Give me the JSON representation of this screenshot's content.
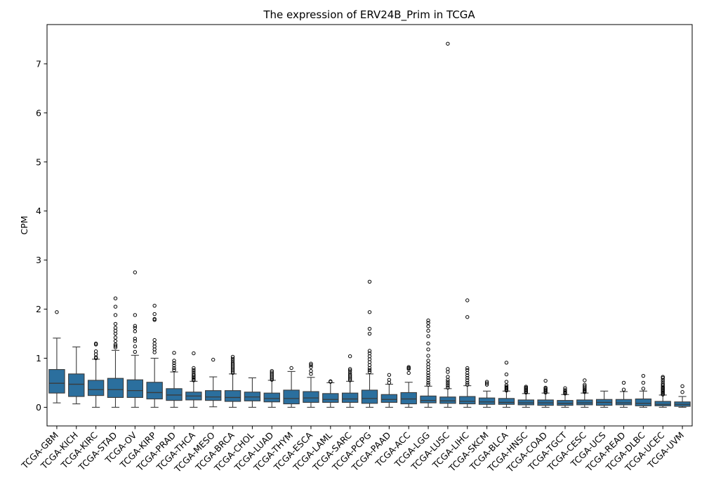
{
  "chart_data": {
    "type": "box",
    "title": "The expression of ERV24B_Prim in TCGA",
    "xlabel": "",
    "ylabel": "CPM",
    "ylim": [
      -0.38,
      7.8
    ],
    "yticks": [
      0,
      1,
      2,
      3,
      4,
      5,
      6,
      7
    ],
    "box_color": "#2b6f9e",
    "categories": [
      "TCGA-GBM",
      "TCGA-KICH",
      "TCGA-KIRC",
      "TCGA-STAD",
      "TCGA-OV",
      "TCGA-KIRP",
      "TCGA-PRAD",
      "TCGA-THCA",
      "TCGA-MESO",
      "TCGA-BRCA",
      "TCGA-CHOL",
      "TCGA-LUAD",
      "TCGA-THYM",
      "TCGA-ESCA",
      "TCGA-LAML",
      "TCGA-SARC",
      "TCGA-PCPG",
      "TCGA-PAAD",
      "TCGA-ACC",
      "TCGA-LGG",
      "TCGA-LUSC",
      "TCGA-LIHC",
      "TCGA-SKCM",
      "TCGA-BLCA",
      "TCGA-HNSC",
      "TCGA-COAD",
      "TCGA-TGCT",
      "TCGA-CESC",
      "TCGA-UCS",
      "TCGA-READ",
      "TCGA-DLBC",
      "TCGA-UCEC",
      "TCGA-UVM"
    ],
    "boxes": [
      {
        "whislo": 0.09,
        "q1": 0.29,
        "med": 0.49,
        "q3": 0.77,
        "whishi": 1.41,
        "fliers": [
          1.94
        ]
      },
      {
        "whislo": 0.07,
        "q1": 0.22,
        "med": 0.47,
        "q3": 0.68,
        "whishi": 1.23,
        "fliers": []
      },
      {
        "whislo": 0.0,
        "q1": 0.24,
        "med": 0.36,
        "q3": 0.55,
        "whishi": 0.98,
        "fliers": [
          1.0,
          1.02,
          1.08,
          1.14,
          1.28,
          1.3
        ]
      },
      {
        "whislo": 0.0,
        "q1": 0.2,
        "med": 0.36,
        "q3": 0.59,
        "whishi": 1.16,
        "fliers": [
          1.22,
          1.25,
          1.28,
          1.35,
          1.42,
          1.5,
          1.56,
          1.62,
          1.7,
          1.88,
          2.05,
          2.22
        ]
      },
      {
        "whislo": 0.0,
        "q1": 0.2,
        "med": 0.34,
        "q3": 0.56,
        "whishi": 1.06,
        "fliers": [
          1.13,
          1.24,
          1.35,
          1.4,
          1.55,
          1.62,
          1.66,
          1.88,
          2.75
        ]
      },
      {
        "whislo": 0.0,
        "q1": 0.17,
        "med": 0.3,
        "q3": 0.51,
        "whishi": 1.0,
        "fliers": [
          1.12,
          1.18,
          1.24,
          1.3,
          1.37,
          1.78,
          1.8,
          1.9,
          2.07
        ]
      },
      {
        "whislo": 0.0,
        "q1": 0.14,
        "med": 0.25,
        "q3": 0.38,
        "whishi": 0.72,
        "fliers": [
          0.76,
          0.8,
          0.85,
          0.9,
          0.95,
          1.11
        ]
      },
      {
        "whislo": 0.0,
        "q1": 0.15,
        "med": 0.23,
        "q3": 0.31,
        "whishi": 0.53,
        "fliers": [
          0.55,
          0.57,
          0.6,
          0.62,
          0.65,
          0.68,
          0.72,
          0.76,
          0.8,
          1.1
        ]
      },
      {
        "whislo": 0.01,
        "q1": 0.14,
        "med": 0.21,
        "q3": 0.34,
        "whishi": 0.62,
        "fliers": [
          0.97
        ]
      },
      {
        "whislo": 0.0,
        "q1": 0.12,
        "med": 0.2,
        "q3": 0.34,
        "whishi": 0.68,
        "fliers": [
          0.7,
          0.73,
          0.76,
          0.79,
          0.82,
          0.85,
          0.88,
          0.91,
          0.95,
          0.99,
          1.03
        ]
      },
      {
        "whislo": 0.0,
        "q1": 0.13,
        "med": 0.21,
        "q3": 0.31,
        "whishi": 0.6,
        "fliers": []
      },
      {
        "whislo": 0.0,
        "q1": 0.11,
        "med": 0.18,
        "q3": 0.29,
        "whishi": 0.55,
        "fliers": [
          0.56,
          0.59,
          0.62,
          0.65,
          0.68,
          0.71,
          0.74
        ]
      },
      {
        "whislo": 0.0,
        "q1": 0.07,
        "med": 0.18,
        "q3": 0.35,
        "whishi": 0.73,
        "fliers": [
          0.8
        ]
      },
      {
        "whislo": 0.0,
        "q1": 0.1,
        "med": 0.19,
        "q3": 0.32,
        "whishi": 0.61,
        "fliers": [
          0.68,
          0.74,
          0.82,
          0.86,
          0.89
        ]
      },
      {
        "whislo": 0.0,
        "q1": 0.1,
        "med": 0.16,
        "q3": 0.28,
        "whishi": 0.5,
        "fliers": [
          0.52,
          0.53
        ]
      },
      {
        "whislo": 0.0,
        "q1": 0.1,
        "med": 0.17,
        "q3": 0.29,
        "whishi": 0.53,
        "fliers": [
          0.55,
          0.58,
          0.61,
          0.64,
          0.67,
          0.71,
          0.75,
          0.78,
          1.04
        ]
      },
      {
        "whislo": 0.0,
        "q1": 0.08,
        "med": 0.18,
        "q3": 0.35,
        "whishi": 0.68,
        "fliers": [
          0.72,
          0.76,
          0.8,
          0.86,
          0.92,
          0.98,
          1.04,
          1.1,
          1.15,
          1.5,
          1.6,
          1.94,
          2.56
        ]
      },
      {
        "whislo": 0.0,
        "q1": 0.1,
        "med": 0.16,
        "q3": 0.26,
        "whishi": 0.47,
        "fliers": [
          0.5,
          0.56,
          0.66
        ]
      },
      {
        "whislo": 0.0,
        "q1": 0.07,
        "med": 0.17,
        "q3": 0.3,
        "whishi": 0.51,
        "fliers": [
          0.7,
          0.78,
          0.8,
          0.82
        ]
      },
      {
        "whislo": 0.0,
        "q1": 0.09,
        "med": 0.14,
        "q3": 0.23,
        "whishi": 0.43,
        "fliers": [
          0.46,
          0.5,
          0.55,
          0.6,
          0.65,
          0.7,
          0.76,
          0.82,
          0.88,
          0.95,
          1.05,
          1.18,
          1.3,
          1.45,
          1.56,
          1.65,
          1.72,
          1.77
        ]
      },
      {
        "whislo": 0.0,
        "q1": 0.08,
        "med": 0.13,
        "q3": 0.21,
        "whishi": 0.38,
        "fliers": [
          0.4,
          0.44,
          0.48,
          0.52,
          0.56,
          0.62,
          0.72,
          0.78,
          7.41
        ]
      },
      {
        "whislo": 0.0,
        "q1": 0.07,
        "med": 0.12,
        "q3": 0.22,
        "whishi": 0.44,
        "fliers": [
          0.46,
          0.5,
          0.55,
          0.6,
          0.65,
          0.7,
          0.76,
          0.8,
          1.84,
          2.18
        ]
      },
      {
        "whislo": 0.0,
        "q1": 0.06,
        "med": 0.11,
        "q3": 0.19,
        "whishi": 0.33,
        "fliers": [
          0.46,
          0.49,
          0.52
        ]
      },
      {
        "whislo": 0.0,
        "q1": 0.06,
        "med": 0.1,
        "q3": 0.18,
        "whishi": 0.33,
        "fliers": [
          0.34,
          0.36,
          0.38,
          0.4,
          0.42,
          0.45,
          0.52,
          0.67,
          0.91
        ]
      },
      {
        "whislo": 0.0,
        "q1": 0.05,
        "med": 0.09,
        "q3": 0.15,
        "whishi": 0.28,
        "fliers": [
          0.3,
          0.32,
          0.34,
          0.36,
          0.38,
          0.4,
          0.42
        ]
      },
      {
        "whislo": 0.0,
        "q1": 0.04,
        "med": 0.09,
        "q3": 0.15,
        "whishi": 0.29,
        "fliers": [
          0.3,
          0.32,
          0.34,
          0.36,
          0.38,
          0.4,
          0.54
        ]
      },
      {
        "whislo": 0.0,
        "q1": 0.04,
        "med": 0.08,
        "q3": 0.14,
        "whishi": 0.26,
        "fliers": [
          0.28,
          0.3,
          0.32,
          0.35,
          0.39
        ]
      },
      {
        "whislo": 0.0,
        "q1": 0.05,
        "med": 0.09,
        "q3": 0.15,
        "whishi": 0.29,
        "fliers": [
          0.31,
          0.33,
          0.35,
          0.37,
          0.4,
          0.43,
          0.46,
          0.55
        ]
      },
      {
        "whislo": 0.0,
        "q1": 0.04,
        "med": 0.1,
        "q3": 0.16,
        "whishi": 0.33,
        "fliers": []
      },
      {
        "whislo": 0.0,
        "q1": 0.05,
        "med": 0.09,
        "q3": 0.16,
        "whishi": 0.32,
        "fliers": [
          0.36,
          0.5
        ]
      },
      {
        "whislo": 0.0,
        "q1": 0.03,
        "med": 0.08,
        "q3": 0.17,
        "whishi": 0.33,
        "fliers": [
          0.38,
          0.5,
          0.64
        ]
      },
      {
        "whislo": 0.0,
        "q1": 0.03,
        "med": 0.06,
        "q3": 0.12,
        "whishi": 0.25,
        "fliers": [
          0.26,
          0.28,
          0.3,
          0.32,
          0.34,
          0.36,
          0.38,
          0.4,
          0.42,
          0.45,
          0.48,
          0.52,
          0.56,
          0.6,
          0.62
        ]
      },
      {
        "whislo": 0.0,
        "q1": 0.02,
        "med": 0.06,
        "q3": 0.11,
        "whishi": 0.22,
        "fliers": [
          0.31,
          0.43
        ]
      }
    ]
  }
}
